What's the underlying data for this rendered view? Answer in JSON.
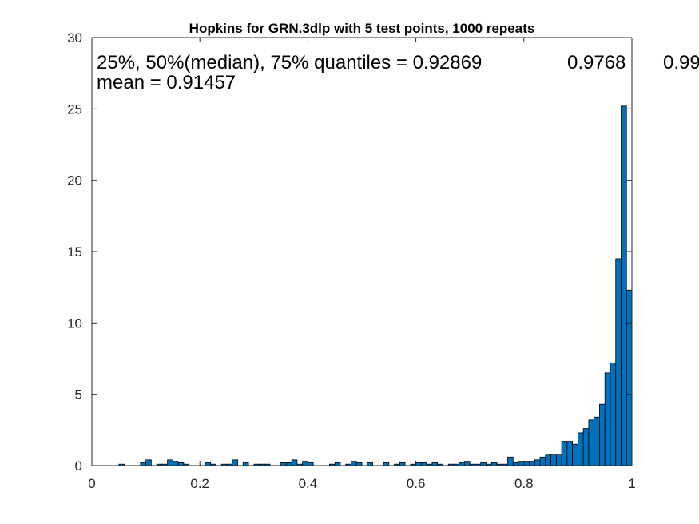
{
  "chart_data": {
    "type": "bar",
    "title": "Hopkins for GRN.3dlp with 5 test points, 1000 repeats",
    "xlabel": "",
    "ylabel": "",
    "xlim": [
      0,
      1
    ],
    "ylim": [
      0,
      30
    ],
    "bin_width": 0.01,
    "bar_color": "#0072BD",
    "edge_color": "#000000",
    "x_ticks": [
      "0",
      "0.2",
      "0.4",
      "0.6",
      "0.8",
      "1"
    ],
    "y_ticks": [
      "0",
      "5",
      "10",
      "15",
      "20",
      "25",
      "30"
    ],
    "annotations": {
      "quantiles_label": "25%, 50%(median), 75% quantiles = 0.92869",
      "quantile_median": "0.9768",
      "quantile_75": "0.99",
      "mean_label": "mean = 0.91457"
    },
    "bin_centers": [
      0.005,
      0.015,
      0.025,
      0.035,
      0.045,
      0.055,
      0.065,
      0.075,
      0.085,
      0.095,
      0.105,
      0.115,
      0.125,
      0.135,
      0.145,
      0.155,
      0.165,
      0.175,
      0.185,
      0.195,
      0.205,
      0.215,
      0.225,
      0.235,
      0.245,
      0.255,
      0.265,
      0.275,
      0.285,
      0.295,
      0.305,
      0.315,
      0.325,
      0.335,
      0.345,
      0.355,
      0.365,
      0.375,
      0.385,
      0.395,
      0.405,
      0.415,
      0.425,
      0.435,
      0.445,
      0.455,
      0.465,
      0.475,
      0.485,
      0.495,
      0.505,
      0.515,
      0.525,
      0.535,
      0.545,
      0.555,
      0.565,
      0.575,
      0.585,
      0.595,
      0.605,
      0.615,
      0.625,
      0.635,
      0.645,
      0.655,
      0.665,
      0.675,
      0.685,
      0.695,
      0.705,
      0.715,
      0.725,
      0.735,
      0.745,
      0.755,
      0.765,
      0.775,
      0.785,
      0.795,
      0.805,
      0.815,
      0.825,
      0.835,
      0.845,
      0.855,
      0.865,
      0.875,
      0.885,
      0.895,
      0.905,
      0.915,
      0.925,
      0.935,
      0.945,
      0.955,
      0.965,
      0.975,
      0.985,
      0.995
    ],
    "values": [
      0,
      0,
      0,
      0,
      0,
      0.1,
      0,
      0,
      0,
      0.2,
      0.4,
      0,
      0.1,
      0.1,
      0.4,
      0.3,
      0.2,
      0.1,
      0,
      0,
      0,
      0.2,
      0.1,
      0,
      0.1,
      0.1,
      0.4,
      0,
      0.2,
      0,
      0.1,
      0.1,
      0.1,
      0,
      0,
      0.2,
      0.2,
      0.4,
      0.1,
      0.3,
      0.2,
      0,
      0,
      0,
      0.1,
      0.2,
      0,
      0.1,
      0.3,
      0.2,
      0,
      0.2,
      0,
      0,
      0.2,
      0,
      0.1,
      0.2,
      0,
      0.1,
      0.2,
      0.2,
      0.1,
      0.2,
      0.1,
      0,
      0.1,
      0.1,
      0.2,
      0.3,
      0.1,
      0.1,
      0.2,
      0.1,
      0.2,
      0.1,
      0.1,
      0.6,
      0.2,
      0.3,
      0.3,
      0.3,
      0.4,
      0.6,
      0.8,
      0.8,
      0.8,
      1.7,
      1.7,
      1.5,
      2.3,
      2.6,
      3.2,
      3.4,
      4.3,
      6.5,
      7.2,
      14.5,
      25.2,
      12.3
    ]
  }
}
